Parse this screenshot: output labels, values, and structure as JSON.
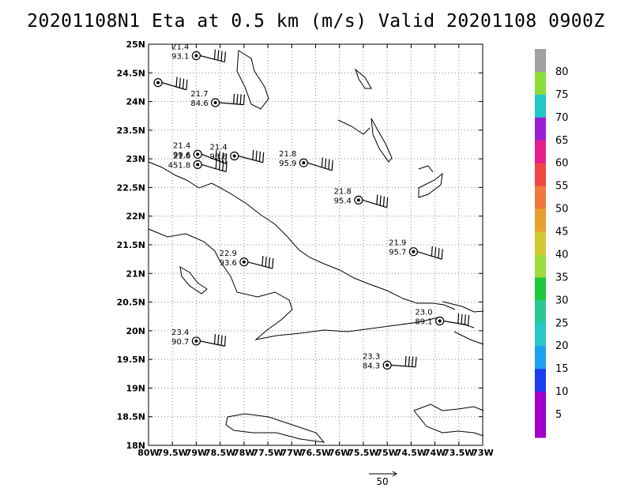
{
  "title": "20201108N1 Eta at 0.5 km (m/s) Valid 20201108 0900Z",
  "map": {
    "lat_labels": [
      "25N",
      "24.5N",
      "24N",
      "23.5N",
      "23N",
      "22.5N",
      "22N",
      "21.5N",
      "21N",
      "20.5N",
      "20N",
      "19.5N",
      "19N",
      "18.5N",
      "18N"
    ],
    "lon_labels": [
      "80W",
      "79.5W",
      "79W",
      "78.5W",
      "78W",
      "77.5W",
      "77W",
      "76.5W",
      "76W",
      "75.5W",
      "75W",
      "74.5W",
      "74W",
      "73.5W",
      "73W"
    ],
    "lat_range": [
      18,
      25
    ],
    "lon_range": [
      -80,
      -73
    ],
    "grid": "dotted"
  },
  "stations": [
    {
      "lon": -79.0,
      "lat": 24.8,
      "speed": "21.4",
      "dir": "93.1"
    },
    {
      "lon": -79.8,
      "lat": 24.33,
      "speed": "",
      "dir": ""
    },
    {
      "lon": -78.6,
      "lat": 23.98,
      "speed": "21.7",
      "dir": "84.6"
    },
    {
      "lon": -78.97,
      "lat": 23.08,
      "speed": "21.4",
      "dir": "99.6"
    },
    {
      "lon": -78.97,
      "lat": 22.9,
      "speed": "21.6",
      "dir": "451.8"
    },
    {
      "lon": -78.2,
      "lat": 23.05,
      "speed": "21.4",
      "dir": "93.6"
    },
    {
      "lon": -76.75,
      "lat": 22.93,
      "speed": "21.8",
      "dir": "95.9"
    },
    {
      "lon": -75.6,
      "lat": 22.28,
      "speed": "21.8",
      "dir": "95.4"
    },
    {
      "lon": -78.0,
      "lat": 21.2,
      "speed": "22.9",
      "dir": "93.6"
    },
    {
      "lon": -74.45,
      "lat": 21.38,
      "speed": "21.9",
      "dir": "95.7"
    },
    {
      "lon": -73.9,
      "lat": 20.17,
      "speed": "23.0",
      "dir": "89.1"
    },
    {
      "lon": -79.0,
      "lat": 19.82,
      "speed": "23.4",
      "dir": "90.7"
    },
    {
      "lon": -75.0,
      "lat": 19.4,
      "speed": "23.3",
      "dir": "84.3"
    }
  ],
  "colorbar": {
    "labels": [
      "80",
      "75",
      "70",
      "65",
      "60",
      "55",
      "50",
      "45",
      "40",
      "35",
      "30",
      "25",
      "20",
      "15",
      "10",
      "5"
    ],
    "colors": [
      "#a0a0a0",
      "#8cdc3c",
      "#20c8c8",
      "#9b20d2",
      "#e61e8c",
      "#f04646",
      "#f0783c",
      "#e6a032",
      "#d2c832",
      "#a0dc3c",
      "#1ec83c",
      "#28c896",
      "#28c8c8",
      "#1ea0f0",
      "#1e3cf0",
      "#a000c8",
      "#a000c8"
    ]
  },
  "reference_vector": {
    "label": "50"
  }
}
